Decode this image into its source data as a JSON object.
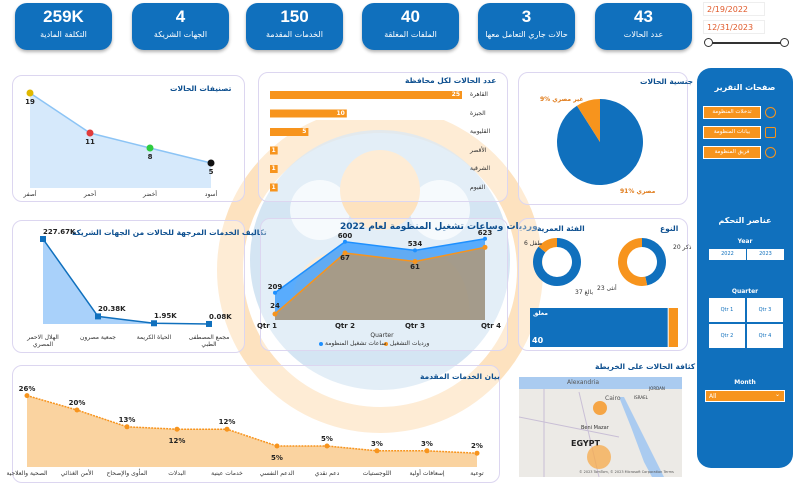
{
  "kpis": [
    {
      "value": "259K",
      "label": "التكلفة المادية"
    },
    {
      "value": "4",
      "label": "الجهات الشريكة"
    },
    {
      "value": "150",
      "label": "الخدمات المقدمة"
    },
    {
      "value": "40",
      "label": "الملفات المغلقة"
    },
    {
      "value": "3",
      "label": "حالات جاري التعامل معها"
    },
    {
      "value": "43",
      "label": "عدد الحالات"
    }
  ],
  "date_range": {
    "start": "2/19/2022",
    "end": "12/31/2023"
  },
  "colors": {
    "primary": "#1070bd",
    "accent": "#f7941d"
  },
  "classification": {
    "title": "تصنيفات الحالات",
    "categories": [
      "أصفر",
      "أحمر",
      "أخضر",
      "أسود"
    ],
    "values": [
      19,
      11,
      8,
      5
    ],
    "point_colors": [
      "#e0b800",
      "#e03b3b",
      "#2ecc40",
      "#111111"
    ]
  },
  "governorate": {
    "title": "عدد الحالات لكل محافظة",
    "categories": [
      "القاهرة",
      "الجيزة",
      "القليوبية",
      "الأقصر",
      "الشرقية",
      "الفيوم"
    ],
    "values": [
      25,
      10,
      5,
      1,
      1,
      1
    ]
  },
  "nationality": {
    "title": "جنسية الحالات",
    "slices": [
      {
        "label": "91% مصري",
        "value": 91
      },
      {
        "label": "9% غير مصري",
        "value": 9
      }
    ]
  },
  "partner_costs": {
    "title": "تكاليف الخدمات المرجهة للحالات من الجهات الشريكة",
    "categories": [
      "الهلال الاحمر المصري",
      "جمعية مصرون",
      "الحياة الكريمة",
      "مجمع المصطفى الطبي"
    ],
    "values": [
      227.67,
      20.38,
      1.95,
      0.08
    ],
    "labels": [
      "227.67K",
      "20.38K",
      "1.95K",
      "0.08K"
    ]
  },
  "shifts": {
    "title": "ورديات وساعات تشغيل المنظومة لعام 2022",
    "xlabel": "Quarter",
    "categories": [
      "Qtr 1",
      "Qtr 2",
      "Qtr 3",
      "Qtr 4"
    ],
    "series": [
      {
        "name": "ساعات تشغيل المنظومة",
        "values": [
          209,
          600,
          534,
          623
        ]
      },
      {
        "name": "ورديات التشغيل",
        "values": [
          24,
          67,
          61,
          71
        ]
      }
    ]
  },
  "type": {
    "title": "النوع",
    "slices": [
      {
        "label": "20 ذكر",
        "value": 20
      },
      {
        "label": "23 أنثى",
        "value": 23
      }
    ]
  },
  "age": {
    "title": "الفئة العمرية",
    "slices": [
      {
        "label": "37 بالغ",
        "value": 37
      },
      {
        "label": "6 طفل",
        "value": 6
      }
    ]
  },
  "status_bar": {
    "label": "مغلق",
    "value": "40",
    "closed": 40,
    "other": 3
  },
  "services": {
    "title": "بيان الخدمات المقدمة",
    "categories": [
      "الصحية والعلاجية",
      "الأمن الغذائي",
      "المأوى والإصحاح",
      "البدلات",
      "خدمات عينية",
      "الدعم النفسي",
      "دعم نقدي",
      "اللوجستيات",
      "إسعافات أولية",
      "توعية"
    ],
    "values": [
      26,
      20,
      13,
      12,
      12,
      5,
      5,
      3,
      3,
      2
    ],
    "labels": [
      "26%",
      "20%",
      "13%",
      "12%",
      "12%",
      "5%",
      "5%",
      "3%",
      "3%",
      "2%"
    ]
  },
  "map": {
    "title": "كثافة الحالات على الخريطة",
    "labels": {
      "alexandria": "Alexandria",
      "cairo": "Cairo",
      "egypt": "EGYPT",
      "beni_mazar": "Beni Mazar",
      "israel": "ISRAEL",
      "jordan": "JORDAN"
    },
    "credit": "© 2023 TomTom, © 2023 Microsoft Corporation  Terms"
  },
  "sidebar": {
    "title": "صفحات التقرير",
    "nav": [
      "تدخلات المنظومة",
      "بيانات المنظومة",
      "فريق المنظومة"
    ],
    "controls_title": "عناصر التحكم",
    "year_label": "Year",
    "years": [
      "2022",
      "2023"
    ],
    "quarter_label": "Quarter",
    "quarters": [
      "Qtr 1",
      "Qtr 3",
      "Qtr 2",
      "Qtr 4"
    ],
    "month_label": "Month",
    "month_value": "All"
  }
}
